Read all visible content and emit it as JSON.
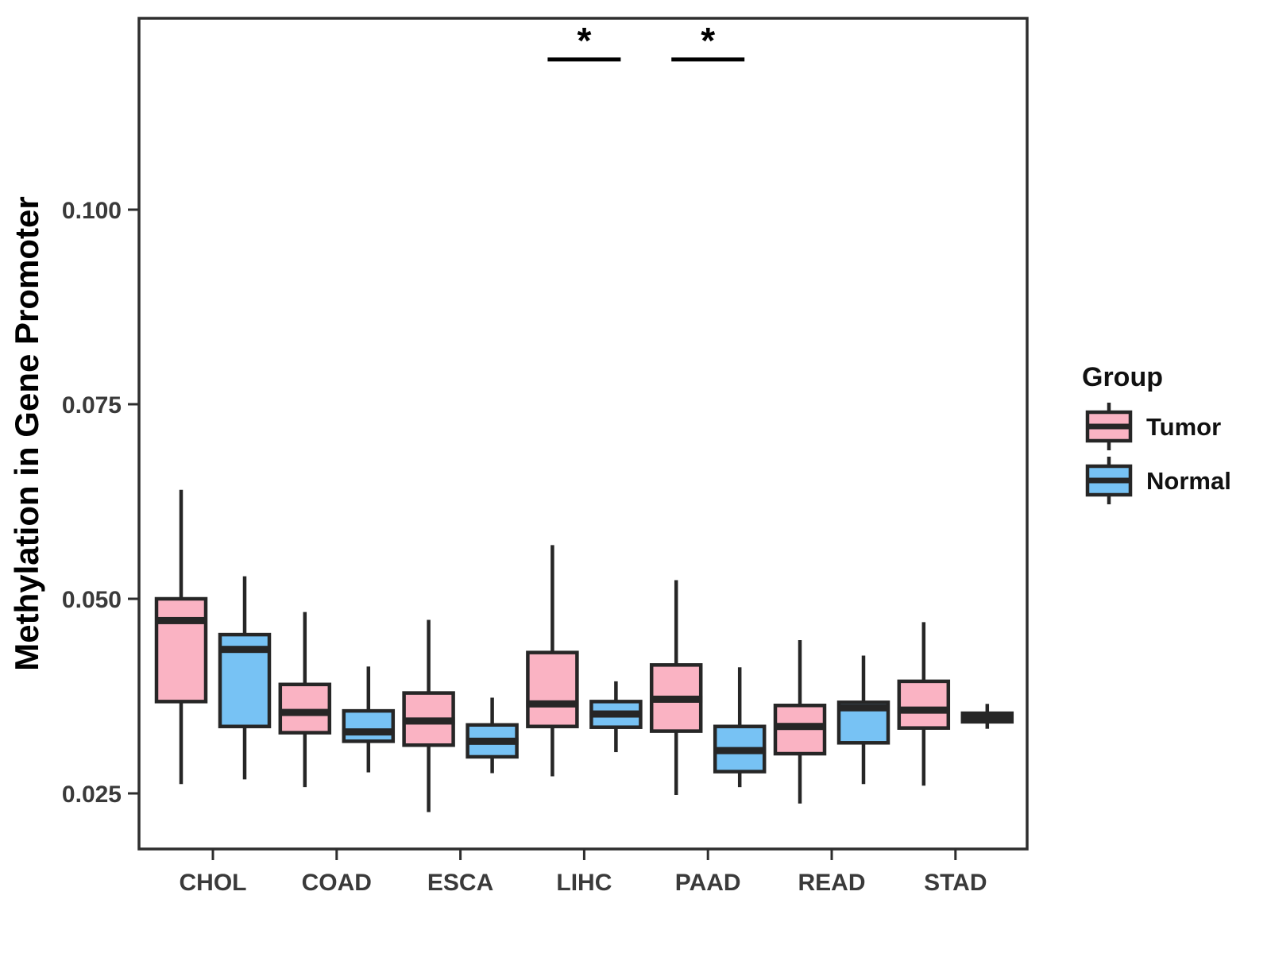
{
  "chart_data": {
    "type": "boxplot",
    "title": "",
    "xlabel": "",
    "ylabel": "Methylation in Gene Promoter",
    "categories": [
      "CHOL",
      "COAD",
      "ESCA",
      "LIHC",
      "PAAD",
      "READ",
      "STAD"
    ],
    "yticks": [
      0.025,
      0.05,
      0.075,
      0.1
    ],
    "ytick_labels": [
      "0.025",
      "0.050",
      "0.075",
      "0.100"
    ],
    "ylim": [
      0.0177,
      0.1249
    ],
    "grid": false,
    "panel_border": true,
    "colors": {
      "tumor_fill": "#FAB3C3",
      "normal_fill": "#77C2F4",
      "box_stroke": "#262626",
      "axis_stroke": "#2e2e2e",
      "tick_label": "#3a3a3a",
      "text": "#111111",
      "background": "#ffffff"
    },
    "series": [
      {
        "name": "Tumor",
        "color": "#FAB3C3",
        "boxes": [
          {
            "category": "CHOL",
            "lo": 0.0262,
            "q1": 0.0368,
            "med": 0.0472,
            "q3": 0.05,
            "hi": 0.064
          },
          {
            "category": "COAD",
            "lo": 0.0258,
            "q1": 0.0328,
            "med": 0.0354,
            "q3": 0.039,
            "hi": 0.0483
          },
          {
            "category": "ESCA",
            "lo": 0.0226,
            "q1": 0.0312,
            "med": 0.0343,
            "q3": 0.0379,
            "hi": 0.0473
          },
          {
            "category": "LIHC",
            "lo": 0.0272,
            "q1": 0.0336,
            "med": 0.0365,
            "q3": 0.0431,
            "hi": 0.0569
          },
          {
            "category": "PAAD",
            "lo": 0.0248,
            "q1": 0.033,
            "med": 0.0371,
            "q3": 0.0415,
            "hi": 0.0524
          },
          {
            "category": "READ",
            "lo": 0.0237,
            "q1": 0.0301,
            "med": 0.0336,
            "q3": 0.0363,
            "hi": 0.0447
          },
          {
            "category": "STAD",
            "lo": 0.026,
            "q1": 0.0334,
            "med": 0.0357,
            "q3": 0.0394,
            "hi": 0.047
          }
        ]
      },
      {
        "name": "Normal",
        "color": "#77C2F4",
        "boxes": [
          {
            "category": "CHOL",
            "lo": 0.0268,
            "q1": 0.0336,
            "med": 0.0435,
            "q3": 0.0454,
            "hi": 0.0529
          },
          {
            "category": "COAD",
            "lo": 0.0277,
            "q1": 0.0317,
            "med": 0.0329,
            "q3": 0.0356,
            "hi": 0.0413
          },
          {
            "category": "ESCA",
            "lo": 0.0276,
            "q1": 0.0297,
            "med": 0.0317,
            "q3": 0.0338,
            "hi": 0.0373
          },
          {
            "category": "LIHC",
            "lo": 0.0303,
            "q1": 0.0335,
            "med": 0.0352,
            "q3": 0.0368,
            "hi": 0.0394
          },
          {
            "category": "PAAD",
            "lo": 0.0258,
            "q1": 0.0278,
            "med": 0.0305,
            "q3": 0.0336,
            "hi": 0.0412
          },
          {
            "category": "READ",
            "lo": 0.0262,
            "q1": 0.0315,
            "med": 0.036,
            "q3": 0.0367,
            "hi": 0.0427
          },
          {
            "category": "STAD",
            "lo": 0.0333,
            "q1": 0.0342,
            "med": 0.0347,
            "q3": 0.0353,
            "hi": 0.0365
          }
        ]
      }
    ],
    "annotations": [
      {
        "category": "LIHC",
        "label": "*",
        "y": 0.1193
      },
      {
        "category": "PAAD",
        "label": "*",
        "y": 0.1193
      }
    ],
    "legend": {
      "title": "Group",
      "position": "right",
      "entries": [
        {
          "label": "Tumor",
          "color": "#FAB3C3"
        },
        {
          "label": "Normal",
          "color": "#77C2F4"
        }
      ]
    }
  }
}
